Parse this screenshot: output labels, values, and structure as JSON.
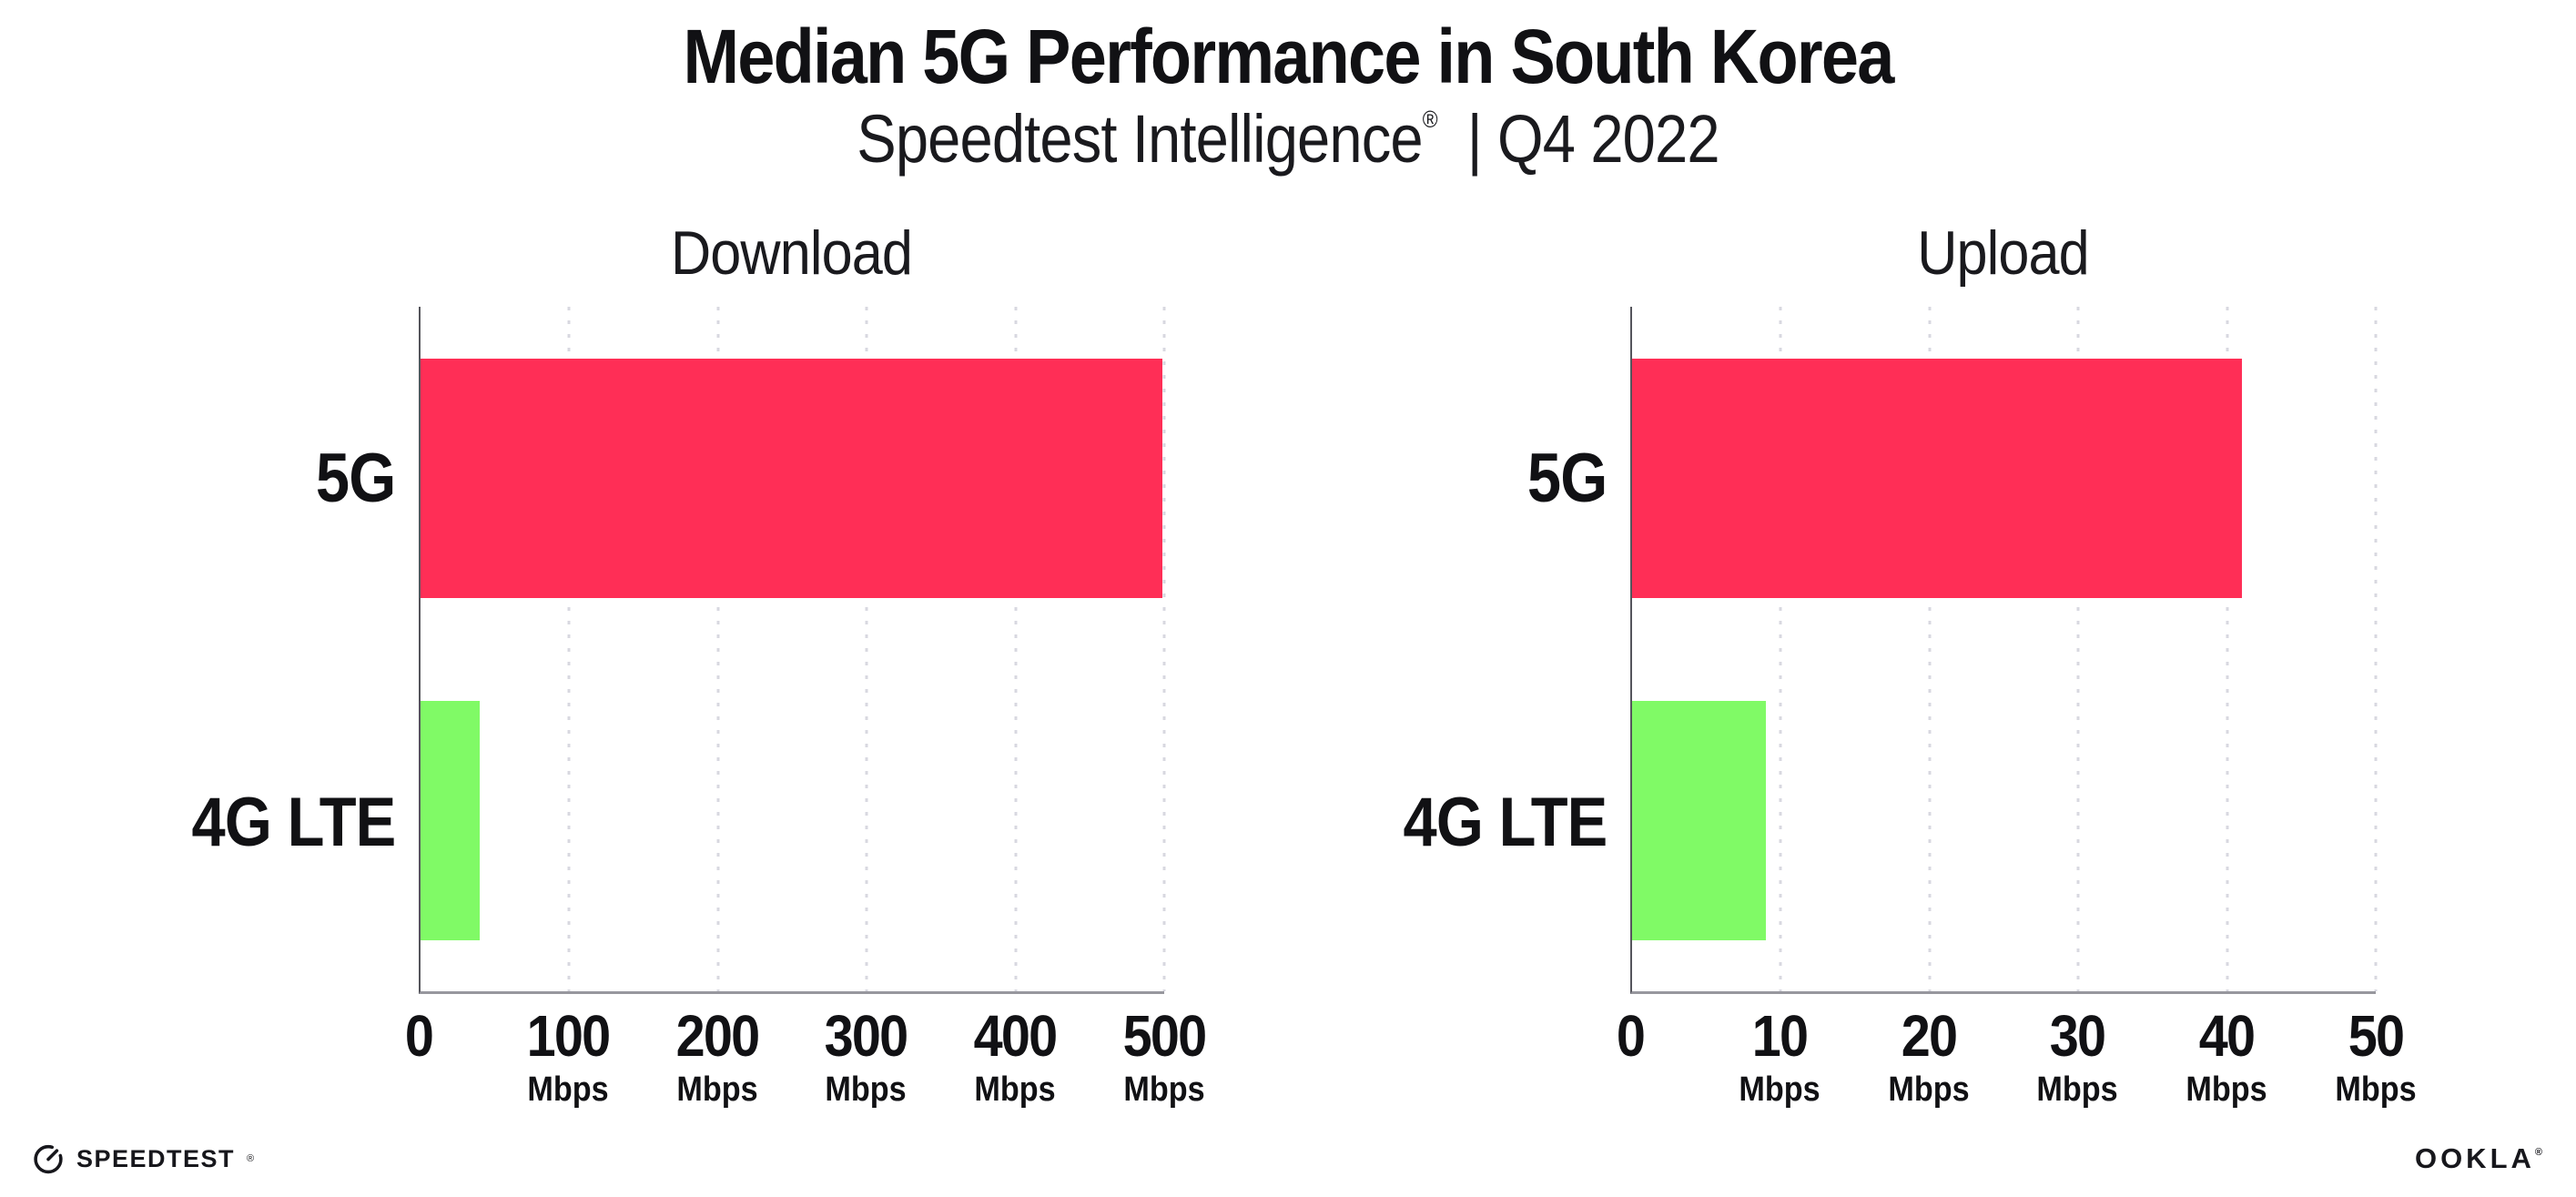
{
  "header": {
    "title": "Median 5G Performance in South Korea",
    "subtitle_brand": "Speedtest Intelligence",
    "subtitle_reg": "®",
    "subtitle_rest": "| Q4 2022"
  },
  "chart_data": [
    {
      "type": "bar",
      "orientation": "horizontal",
      "title": "Download",
      "categories": [
        "5G",
        "4G LTE"
      ],
      "values": [
        499,
        40
      ],
      "colors": [
        "#ff2e56",
        "#80fa66"
      ],
      "unit": "Mbps",
      "xlim": [
        0,
        500
      ],
      "xticks": [
        0,
        100,
        200,
        300,
        400,
        500
      ],
      "grid": "vertical-dotted",
      "legend": "none"
    },
    {
      "type": "bar",
      "orientation": "horizontal",
      "title": "Upload",
      "categories": [
        "5G",
        "4G LTE"
      ],
      "values": [
        41,
        9
      ],
      "colors": [
        "#ff2e56",
        "#80fa66"
      ],
      "unit": "Mbps",
      "xlim": [
        0,
        50
      ],
      "xticks": [
        0,
        10,
        20,
        30,
        40,
        50
      ],
      "grid": "vertical-dotted",
      "legend": "none"
    }
  ],
  "footer": {
    "speedtest": "SPEEDTEST",
    "speedtest_mark": "®",
    "ookla": "OOKLA",
    "ookla_mark": "®"
  }
}
